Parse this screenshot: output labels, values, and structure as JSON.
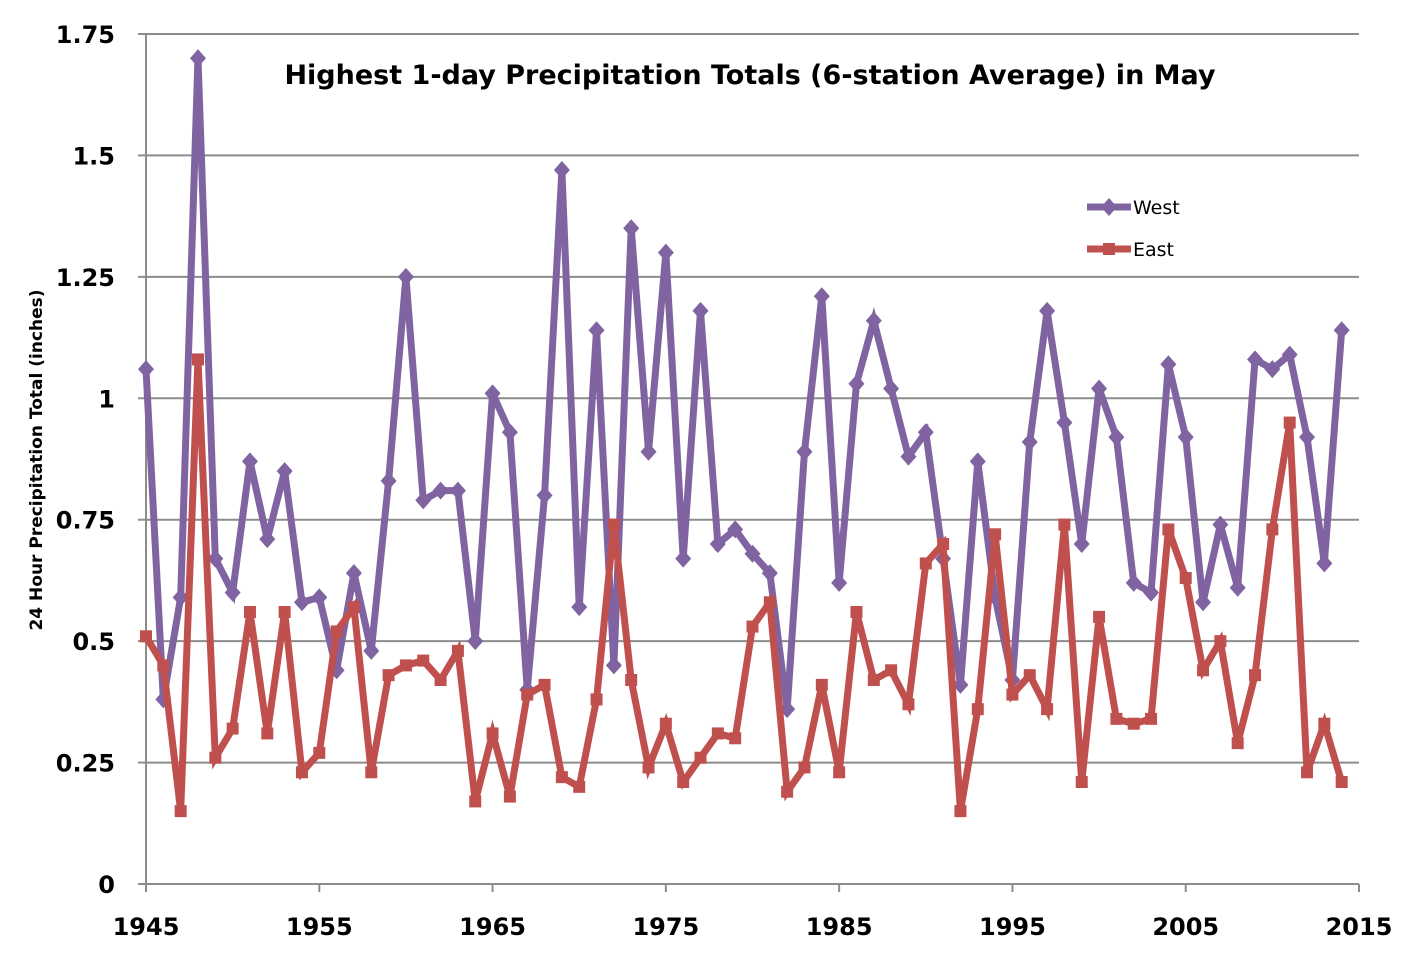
{
  "chart_data": {
    "type": "line",
    "title": "Highest 1-day Precipitation Totals (6-station Average) in May",
    "xlabel": "",
    "ylabel": "24 Hour Precipitation Total (inches)",
    "xlim": [
      1945,
      2015
    ],
    "ylim": [
      0,
      1.75
    ],
    "x_ticks": [
      "1945",
      "1955",
      "1965",
      "1975",
      "1985",
      "1995",
      "2005",
      "2015"
    ],
    "y_ticks": [
      "0",
      "0.25",
      "0.5",
      "0.75",
      "1",
      "1.25",
      "1.5",
      "1.75"
    ],
    "grid": true,
    "legend_position": "top-right",
    "x": [
      1945,
      1946,
      1947,
      1948,
      1949,
      1950,
      1951,
      1952,
      1953,
      1954,
      1955,
      1956,
      1957,
      1958,
      1959,
      1960,
      1961,
      1962,
      1963,
      1964,
      1965,
      1966,
      1967,
      1968,
      1969,
      1970,
      1971,
      1972,
      1973,
      1974,
      1975,
      1976,
      1977,
      1978,
      1979,
      1980,
      1981,
      1982,
      1983,
      1984,
      1985,
      1986,
      1987,
      1988,
      1989,
      1990,
      1991,
      1992,
      1993,
      1994,
      1995,
      1996,
      1997,
      1998,
      1999,
      2000,
      2001,
      2002,
      2003,
      2004,
      2005,
      2006,
      2007,
      2008,
      2009,
      2010,
      2011,
      2012,
      2013,
      2014
    ],
    "series": [
      {
        "name": "West",
        "color": "#8064A2",
        "marker": "diamond",
        "values": [
          1.06,
          0.38,
          0.59,
          1.7,
          0.67,
          0.6,
          0.87,
          0.71,
          0.85,
          0.58,
          0.59,
          0.44,
          0.64,
          0.48,
          0.83,
          1.25,
          0.79,
          0.81,
          0.81,
          0.5,
          1.01,
          0.93,
          0.4,
          0.8,
          1.47,
          0.57,
          1.14,
          0.45,
          1.35,
          0.89,
          1.3,
          0.67,
          1.18,
          0.7,
          0.73,
          0.68,
          0.64,
          0.36,
          0.89,
          1.21,
          0.62,
          1.03,
          1.16,
          1.02,
          0.88,
          0.93,
          0.67,
          0.41,
          0.87,
          0.59,
          0.42,
          0.91,
          1.18,
          0.95,
          0.7,
          1.02,
          0.92,
          0.62,
          0.6,
          1.07,
          0.92,
          0.58,
          0.74,
          0.61,
          1.08,
          1.06,
          1.09,
          0.92,
          0.66,
          1.14
        ]
      },
      {
        "name": "East",
        "color": "#C0504D",
        "marker": "square",
        "values": [
          0.51,
          0.45,
          0.15,
          1.08,
          0.26,
          0.32,
          0.56,
          0.31,
          0.56,
          0.23,
          0.27,
          0.52,
          0.57,
          0.23,
          0.43,
          0.45,
          0.46,
          0.42,
          0.48,
          0.17,
          0.31,
          0.18,
          0.39,
          0.41,
          0.22,
          0.2,
          0.38,
          0.74,
          0.42,
          0.24,
          0.33,
          0.21,
          0.26,
          0.31,
          0.3,
          0.53,
          0.58,
          0.19,
          0.24,
          0.41,
          0.23,
          0.56,
          0.42,
          0.44,
          0.37,
          0.66,
          0.7,
          0.15,
          0.36,
          0.72,
          0.39,
          0.43,
          0.36,
          0.74,
          0.21,
          0.55,
          0.34,
          0.33,
          0.34,
          0.73,
          0.63,
          0.44,
          0.5,
          0.29,
          0.43,
          0.73,
          0.95,
          0.23,
          0.33,
          0.21
        ]
      }
    ]
  }
}
